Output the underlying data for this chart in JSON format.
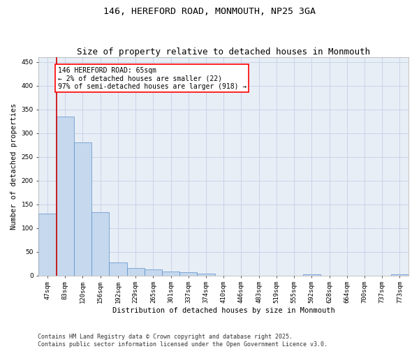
{
  "title": "146, HEREFORD ROAD, MONMOUTH, NP25 3GA",
  "subtitle": "Size of property relative to detached houses in Monmouth",
  "xlabel": "Distribution of detached houses by size in Monmouth",
  "ylabel": "Number of detached properties",
  "categories": [
    "47sqm",
    "83sqm",
    "120sqm",
    "156sqm",
    "192sqm",
    "229sqm",
    "265sqm",
    "301sqm",
    "337sqm",
    "374sqm",
    "410sqm",
    "446sqm",
    "483sqm",
    "519sqm",
    "555sqm",
    "592sqm",
    "628sqm",
    "664sqm",
    "700sqm",
    "737sqm",
    "773sqm"
  ],
  "values": [
    130,
    335,
    280,
    133,
    28,
    16,
    12,
    8,
    6,
    4,
    0,
    0,
    0,
    0,
    0,
    2,
    0,
    0,
    0,
    0,
    2
  ],
  "bar_color": "#c5d8ed",
  "bar_edge_color": "#5b8fc9",
  "annotation_text": "146 HEREFORD ROAD: 65sqm\n← 2% of detached houses are smaller (22)\n97% of semi-detached houses are larger (918) →",
  "vline_x": 0.5,
  "vline_color": "#cc0000",
  "ylim": [
    0,
    460
  ],
  "yticks": [
    0,
    50,
    100,
    150,
    200,
    250,
    300,
    350,
    400,
    450
  ],
  "grid_color": "#c8d4e8",
  "background_color": "#e8eef6",
  "footer": "Contains HM Land Registry data © Crown copyright and database right 2025.\nContains public sector information licensed under the Open Government Licence v3.0.",
  "title_fontsize": 9.5,
  "axis_label_fontsize": 7.5,
  "tick_fontsize": 6.5,
  "annotation_fontsize": 7,
  "footer_fontsize": 6
}
